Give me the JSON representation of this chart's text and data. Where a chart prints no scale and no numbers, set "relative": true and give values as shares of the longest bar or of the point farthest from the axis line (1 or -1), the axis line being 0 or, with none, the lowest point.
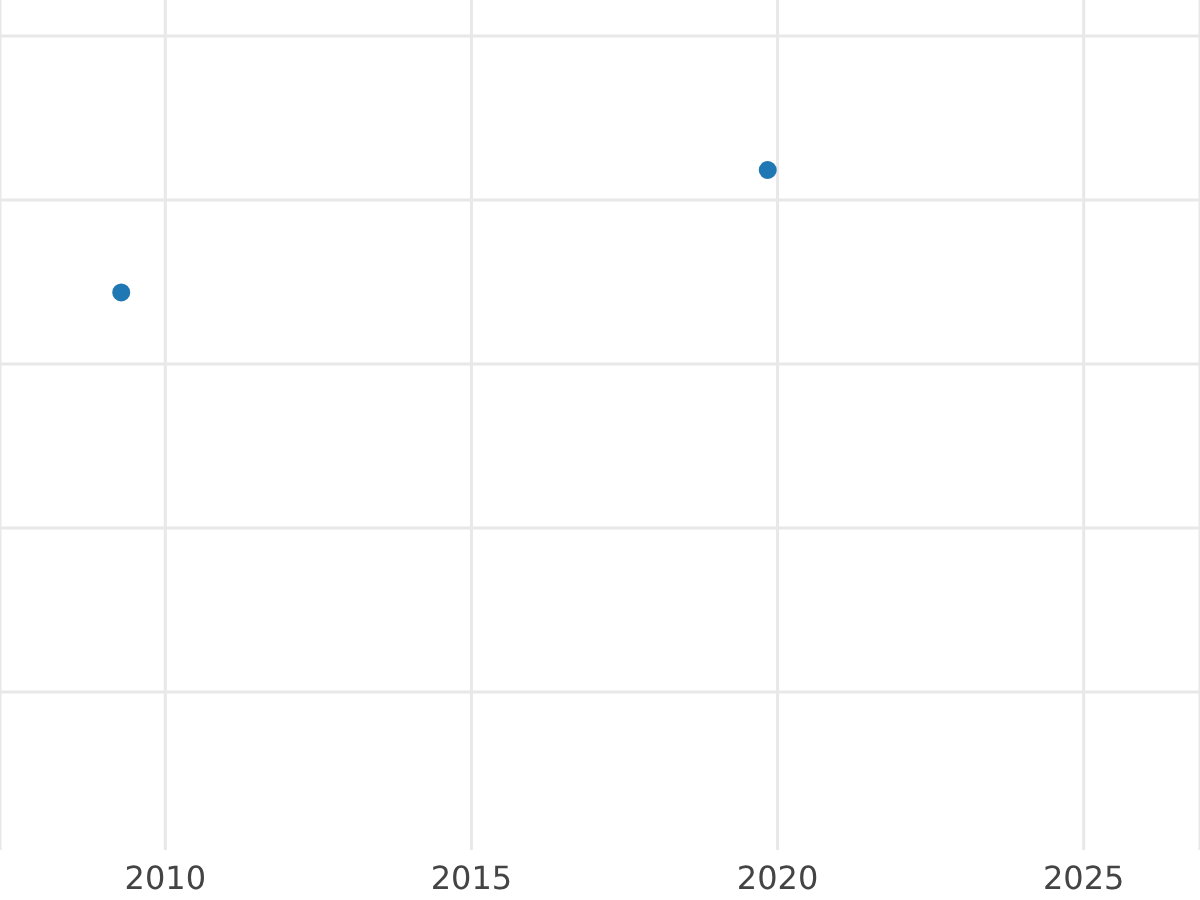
{
  "chart_data": {
    "type": "scatter",
    "x": [
      2009.28,
      2019.84
    ],
    "values": [
      0.82,
      1
    ],
    "relative": true,
    "color": "#1f77b4",
    "marker": "circle",
    "xlim": [
      2007.3,
      2026.9
    ],
    "xticks": [
      2010,
      2015,
      2020,
      2025
    ],
    "grid": true
  }
}
